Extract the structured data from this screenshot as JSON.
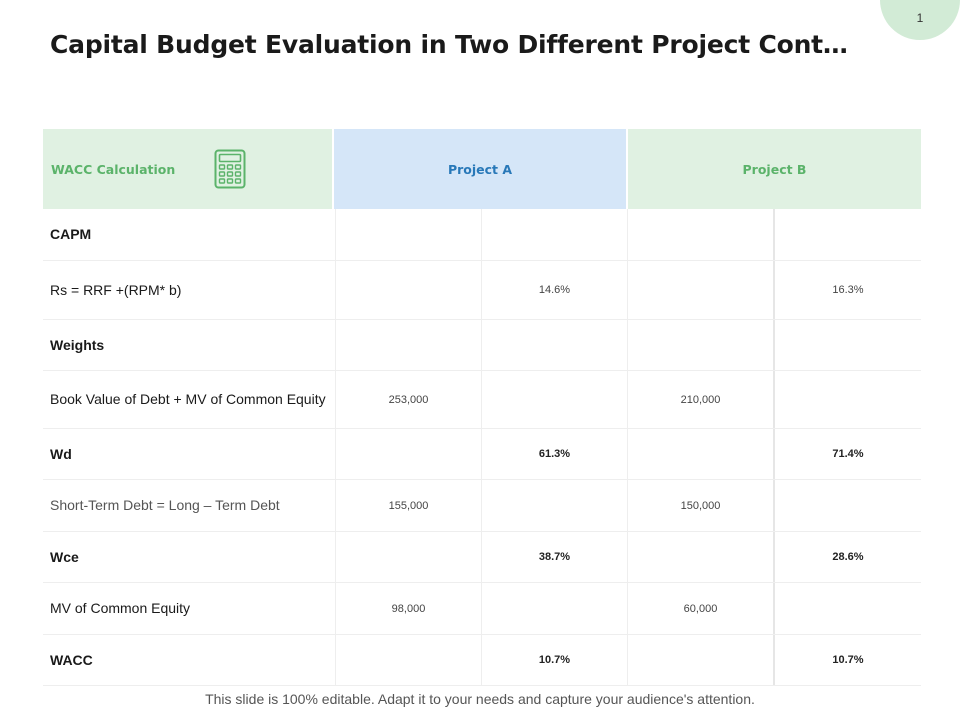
{
  "page_number": "1",
  "title": "Capital Budget Evaluation in Two Different Project Cont…",
  "table": {
    "header": {
      "label": "WACC Calculation",
      "project_a": "Project A",
      "project_b": "Project B",
      "icon": "calculator-icon",
      "accent_green": "#5bb36a",
      "accent_blue": "#2878b8"
    },
    "rows": [
      {
        "label": "CAPM",
        "bold": true,
        "a1": "",
        "a2": "",
        "b1": "",
        "b2": "",
        "h": 51
      },
      {
        "label": "Rs =  RRF +(RPM* b)",
        "bold": false,
        "a1": "",
        "a2": "14.6%",
        "b1": "",
        "b2": "16.3%",
        "h": 58
      },
      {
        "label": "Weights",
        "bold": true,
        "a1": "",
        "a2": "",
        "b1": "",
        "b2": "",
        "h": 50
      },
      {
        "label": "Book Value  of Debt + MV  of Common Equity",
        "bold": false,
        "a1": "253,000",
        "a2": "",
        "b1": "210,000",
        "b2": "",
        "h": 57
      },
      {
        "label": "Wd",
        "bold": true,
        "a1": "",
        "a2": "61.3%",
        "b1": "",
        "b2": "71.4%",
        "vbold": true,
        "h": 50
      },
      {
        "label": "Short-Term Debt = Long – Term Debt",
        "bold": false,
        "gray": true,
        "a1": "155,000",
        "a2": "",
        "b1": "150,000",
        "b2": "",
        "h": 51
      },
      {
        "label": "Wce",
        "bold": true,
        "a1": "",
        "a2": "38.7%",
        "b1": "",
        "b2": "28.6%",
        "vbold": true,
        "h": 50
      },
      {
        "label": "MV  of Common Equity",
        "bold": false,
        "a1": "98,000",
        "a2": "",
        "b1": "60,000",
        "b2": "",
        "h": 51
      },
      {
        "label": "WACC",
        "bold": true,
        "a1": "",
        "a2": "10.7%",
        "b1": "",
        "b2": "10.7%",
        "vbold": true,
        "h": 50
      }
    ]
  },
  "footer": "This slide is 100% editable. Adapt it to your needs and capture your audience's attention."
}
